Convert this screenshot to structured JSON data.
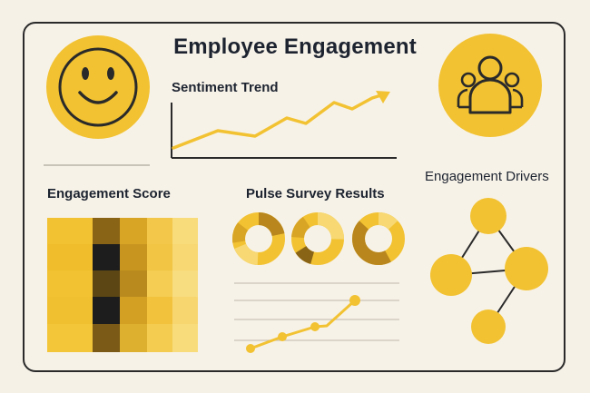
{
  "title": "Employee Engagement",
  "sections": {
    "sentiment_trend": "Sentiment Trend",
    "engagement_score": "Engagement Score",
    "pulse_survey": "Pulse Survey Results",
    "engagement_drivers": "Engagement Drivers"
  },
  "icons": {
    "left": "smiley-face-icon",
    "right": "team-people-icon"
  },
  "colors": {
    "accent": "#f2c232",
    "dark": "#2a2a2a",
    "background": "#f7f2e8"
  }
}
